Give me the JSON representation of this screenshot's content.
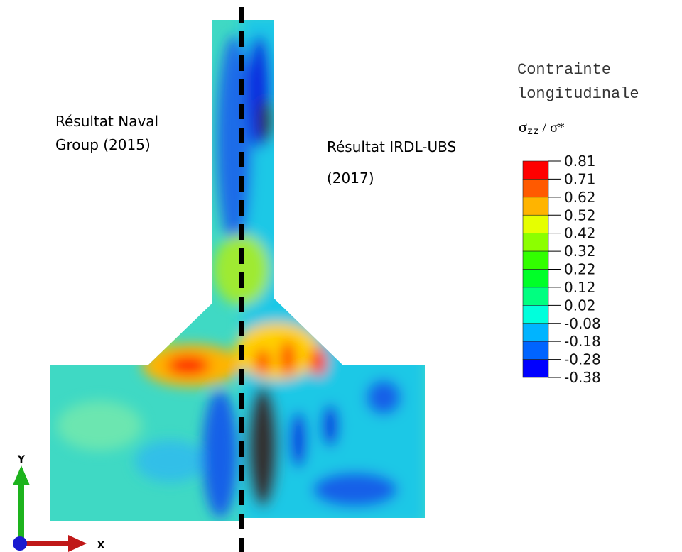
{
  "left_label": [
    "Résultat Naval",
    "Group (2015)"
  ],
  "right_label": [
    "Résultat IRDL-UBS",
    "(2017)"
  ],
  "legend": {
    "title": [
      "Contrainte",
      "longitudinale"
    ],
    "quantity": {
      "symbol": "σ",
      "subscript": "zz",
      "rest": " / σ*"
    },
    "levels": [
      0.81,
      0.71,
      0.62,
      0.52,
      0.42,
      0.32,
      0.22,
      0.12,
      0.02,
      -0.08,
      -0.18,
      -0.28,
      -0.38
    ],
    "colors": [
      "#ff0000",
      "#ff5a00",
      "#ffb400",
      "#e6ff00",
      "#8cff00",
      "#32ff00",
      "#00ff28",
      "#00ff80",
      "#00ffdc",
      "#00b4ff",
      "#0064ff",
      "#0000ff"
    ]
  },
  "axes": {
    "y": "Y",
    "x": "X"
  }
}
